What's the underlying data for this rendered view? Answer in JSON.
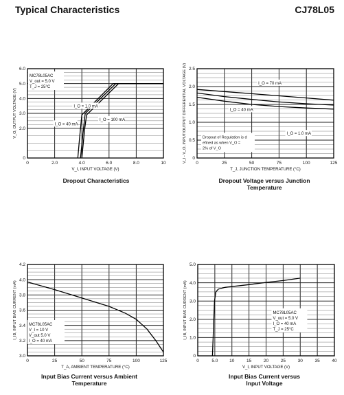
{
  "header": {
    "left": "Typical Characteristics",
    "right": "CJ78L05"
  },
  "chart_data": [
    {
      "type": "line",
      "caption": "Dropout Characteristics",
      "xlabel": "V_I, INPUT VOLTAGE (V)",
      "ylabel": "V_O, OUTPUT VOLTAGE (V)",
      "xlim": [
        0,
        10
      ],
      "ylim": [
        0,
        6
      ],
      "xticks": [
        "0",
        "2.0",
        "4.0",
        "6.0",
        "8.0",
        "10"
      ],
      "yticks": [
        "0",
        "2.0",
        "3.0",
        "4.0",
        "5.0",
        "6.0"
      ],
      "legend": [
        "MC78L05AC",
        "V_out = 5.0 V",
        "T_J = 25°C"
      ],
      "series": [
        {
          "name": "I_O = 1.0 mA",
          "points": [
            [
              3.7,
              0
            ],
            [
              3.85,
              1.5
            ],
            [
              4.0,
              2.9
            ],
            [
              6.3,
              5.0
            ],
            [
              10,
              5.0
            ]
          ]
        },
        {
          "name": "I_O = 40 mA",
          "points": [
            [
              3.9,
              0
            ],
            [
              4.1,
              1.8
            ],
            [
              4.25,
              3.0
            ],
            [
              6.5,
              5.0
            ],
            [
              10,
              5.0
            ]
          ]
        },
        {
          "name": "I_O = 100 mA",
          "points": [
            [
              4.0,
              0
            ],
            [
              4.2,
              1.9
            ],
            [
              4.35,
              2.9
            ],
            [
              6.7,
              5.0
            ],
            [
              10,
              5.0
            ]
          ]
        }
      ],
      "annotations": [
        "I_O = 1.0 mA",
        "I_O = 40 mA",
        "I_O = 100 mA"
      ]
    },
    {
      "type": "line",
      "caption": "Dropout Voltage versus Junction Temperature",
      "xlabel": "T_J, JUNCTION TEMPERATURE (°C)",
      "ylabel": "V_I - V_O, INPUT/OUTPUT DIFFERENTIAL VOLTAGE (V)",
      "xlim": [
        0,
        125
      ],
      "ylim": [
        0,
        2.5
      ],
      "xticks": [
        "0",
        "25",
        "50",
        "75",
        "100",
        "125"
      ],
      "yticks": [
        "0",
        "0.5",
        "1.0",
        "1.5",
        "2.0",
        "2.5"
      ],
      "series": [
        {
          "name": "I_O = 70 mA",
          "points": [
            [
              0,
              1.92
            ],
            [
              25,
              1.86
            ],
            [
              50,
              1.8
            ],
            [
              75,
              1.74
            ],
            [
              100,
              1.68
            ],
            [
              125,
              1.62
            ]
          ]
        },
        {
          "name": "I_O = 40 mA",
          "points": [
            [
              0,
              1.82
            ],
            [
              25,
              1.72
            ],
            [
              50,
              1.64
            ],
            [
              75,
              1.57
            ],
            [
              100,
              1.52
            ],
            [
              125,
              1.48
            ]
          ]
        },
        {
          "name": "I_O = 1.0 mA",
          "points": [
            [
              0,
              1.7
            ],
            [
              25,
              1.59
            ],
            [
              50,
              1.5
            ],
            [
              75,
              1.44
            ],
            [
              100,
              1.4
            ],
            [
              125,
              1.37
            ]
          ]
        }
      ],
      "annotations": [
        "I_O = 70 mA",
        "I_O = 40 mA",
        "I_O = 1.0 mA",
        "Dropout of Regulation is defined as when V_O = 2% of V_O"
      ]
    },
    {
      "type": "line",
      "caption": "Input Bias Current versus Ambient Temperature",
      "xlabel": "T_A, AMBIENT TEMPERATURE (°C)",
      "ylabel": "I_IB, INPUT BIAS CURRENT (mA)",
      "xlim": [
        0,
        125
      ],
      "ylim": [
        3.0,
        4.2
      ],
      "xticks": [
        "0",
        "25",
        "50",
        "75",
        "100",
        "125"
      ],
      "yticks": [
        "3.0",
        "3.2",
        "3.4",
        "3.6",
        "3.8",
        "4.0",
        "4.2"
      ],
      "legend": [
        "MC78L05AC",
        "V_I = 10 V",
        "V_out 5.0 V",
        "I_O = 40 mA"
      ],
      "series": [
        {
          "name": "I_IB",
          "points": [
            [
              0,
              3.97
            ],
            [
              25,
              3.87
            ],
            [
              50,
              3.76
            ],
            [
              75,
              3.65
            ],
            [
              90,
              3.56
            ],
            [
              100,
              3.48
            ],
            [
              110,
              3.35
            ],
            [
              118,
              3.2
            ],
            [
              125,
              3.05
            ]
          ]
        }
      ]
    },
    {
      "type": "line",
      "caption": "Input Bias Current versus Input Voltage",
      "xlabel": "V_I, INPUT VOLTAGE (V)",
      "ylabel": "I_IB, INPUT BIAS CURRENT (mA)",
      "xlim": [
        0,
        40
      ],
      "ylim": [
        0,
        5.0
      ],
      "xticks": [
        "0",
        "5.0",
        "10",
        "15",
        "20",
        "25",
        "30",
        "35",
        "40"
      ],
      "yticks": [
        "0",
        "1.0",
        "2.0",
        "3.0",
        "4.0",
        "5.0"
      ],
      "legend": [
        "MC78L05AC",
        "V_out = 5.0 V",
        "I_O = 40 mA",
        "T_J = 25°C"
      ],
      "series": [
        {
          "name": "I_IB",
          "points": [
            [
              4.3,
              0
            ],
            [
              4.6,
              1.5
            ],
            [
              4.9,
              3.0
            ],
            [
              5.3,
              3.5
            ],
            [
              6,
              3.65
            ],
            [
              8,
              3.75
            ],
            [
              15,
              3.9
            ],
            [
              20,
              4.02
            ],
            [
              25,
              4.12
            ],
            [
              30,
              4.25
            ]
          ]
        }
      ]
    }
  ]
}
